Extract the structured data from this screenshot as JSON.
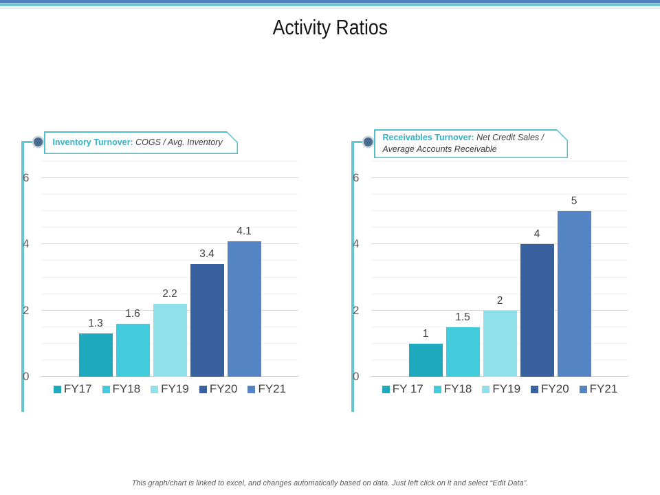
{
  "slide": {
    "title": "Activity Ratios",
    "footer": "This graph/chart is linked to excel, and changes automatically based on data. Just left click on it and select “Edit Data”."
  },
  "theme": {
    "top_bar_blue": "#4e81bd",
    "top_bar_teal": "#6ec6d0",
    "top_bar_light_teal": "#d9f0f2",
    "spine_teal": "#66c6cf",
    "header_border_teal": "#4fc0cc",
    "header_title_teal": "#35b0c2",
    "bullet_fill": "#4a6b8d",
    "gridline_major": "#dadada",
    "gridline_minor": "#f1f1f1",
    "axis_line": "#d0d0d0",
    "axis_text": "#595959",
    "label_text": "#404040"
  },
  "chart_data": [
    {
      "type": "bar",
      "title": "Inventory Turnover: ",
      "subtitle": "COGS / Avg. Inventory",
      "categories": [
        "FY17",
        "FY18",
        "FY19",
        "FY20",
        "FY21"
      ],
      "values": [
        1.3,
        1.6,
        2.2,
        3.4,
        4.1
      ],
      "bar_colors": [
        "#1fa9bc",
        "#41cbdc",
        "#90e0ea",
        "#3a619f",
        "#5584c4"
      ],
      "ylim": [
        0,
        6.5
      ],
      "yticks": [
        0,
        2,
        4,
        6
      ],
      "minor_step": 0.5,
      "grid": true,
      "data_labels": true,
      "legend_position": "bottom"
    },
    {
      "type": "bar",
      "title": "Receivables Turnover: ",
      "subtitle": "Net Credit Sales / Average Accounts Receivable",
      "categories": [
        "FY 17",
        "FY18",
        "FY19",
        "FY20",
        "FY21"
      ],
      "values": [
        1,
        1.5,
        2,
        4,
        5
      ],
      "bar_colors": [
        "#1fa9bc",
        "#41cbdc",
        "#90e0ea",
        "#3a619f",
        "#5584c4"
      ],
      "ylim": [
        0,
        6.5
      ],
      "yticks": [
        0,
        2,
        4,
        6
      ],
      "minor_step": 0.5,
      "grid": true,
      "data_labels": true,
      "legend_position": "bottom"
    }
  ]
}
